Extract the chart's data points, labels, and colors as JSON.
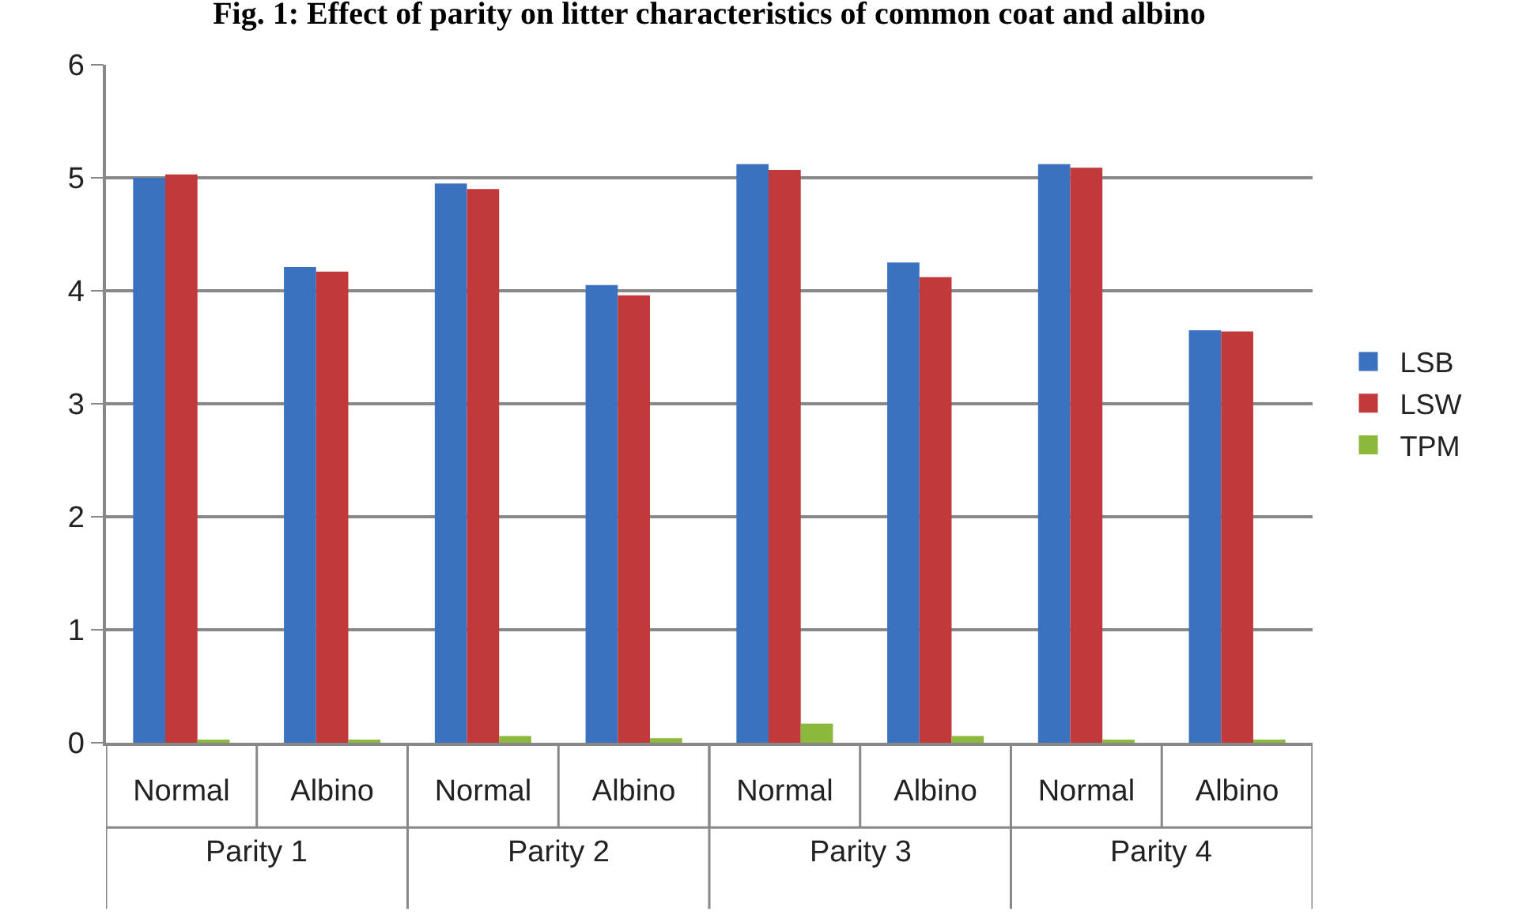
{
  "chart_data": {
    "type": "bar",
    "title": "Fig. 1: Effect of parity on litter characteristics of common coat and albino",
    "categories": [
      "Normal",
      "Albino",
      "Normal",
      "Albino",
      "Normal",
      "Albino",
      "Normal",
      "Albino"
    ],
    "series": [
      {
        "name": "LSB",
        "color": "#3a72c0",
        "values": [
          5.0,
          4.21,
          4.95,
          4.05,
          5.12,
          4.25,
          5.12,
          3.65
        ]
      },
      {
        "name": "LSW",
        "color": "#c0393b",
        "values": [
          5.03,
          4.17,
          4.9,
          3.96,
          5.07,
          4.12,
          5.09,
          3.64
        ]
      },
      {
        "name": "TPM",
        "color": "#8cb83c",
        "values": [
          0.02,
          0.02,
          0.06,
          0.04,
          0.17,
          0.06,
          0.02,
          0.02
        ]
      }
    ],
    "annotations": [
      "Parity 1",
      "Parity 2",
      "Parity 3",
      "Parity 4"
    ],
    "ylim": [
      0,
      6
    ],
    "yticks": [
      0,
      1,
      2,
      3,
      4,
      5,
      6
    ],
    "grid": "y",
    "legend": "right"
  }
}
